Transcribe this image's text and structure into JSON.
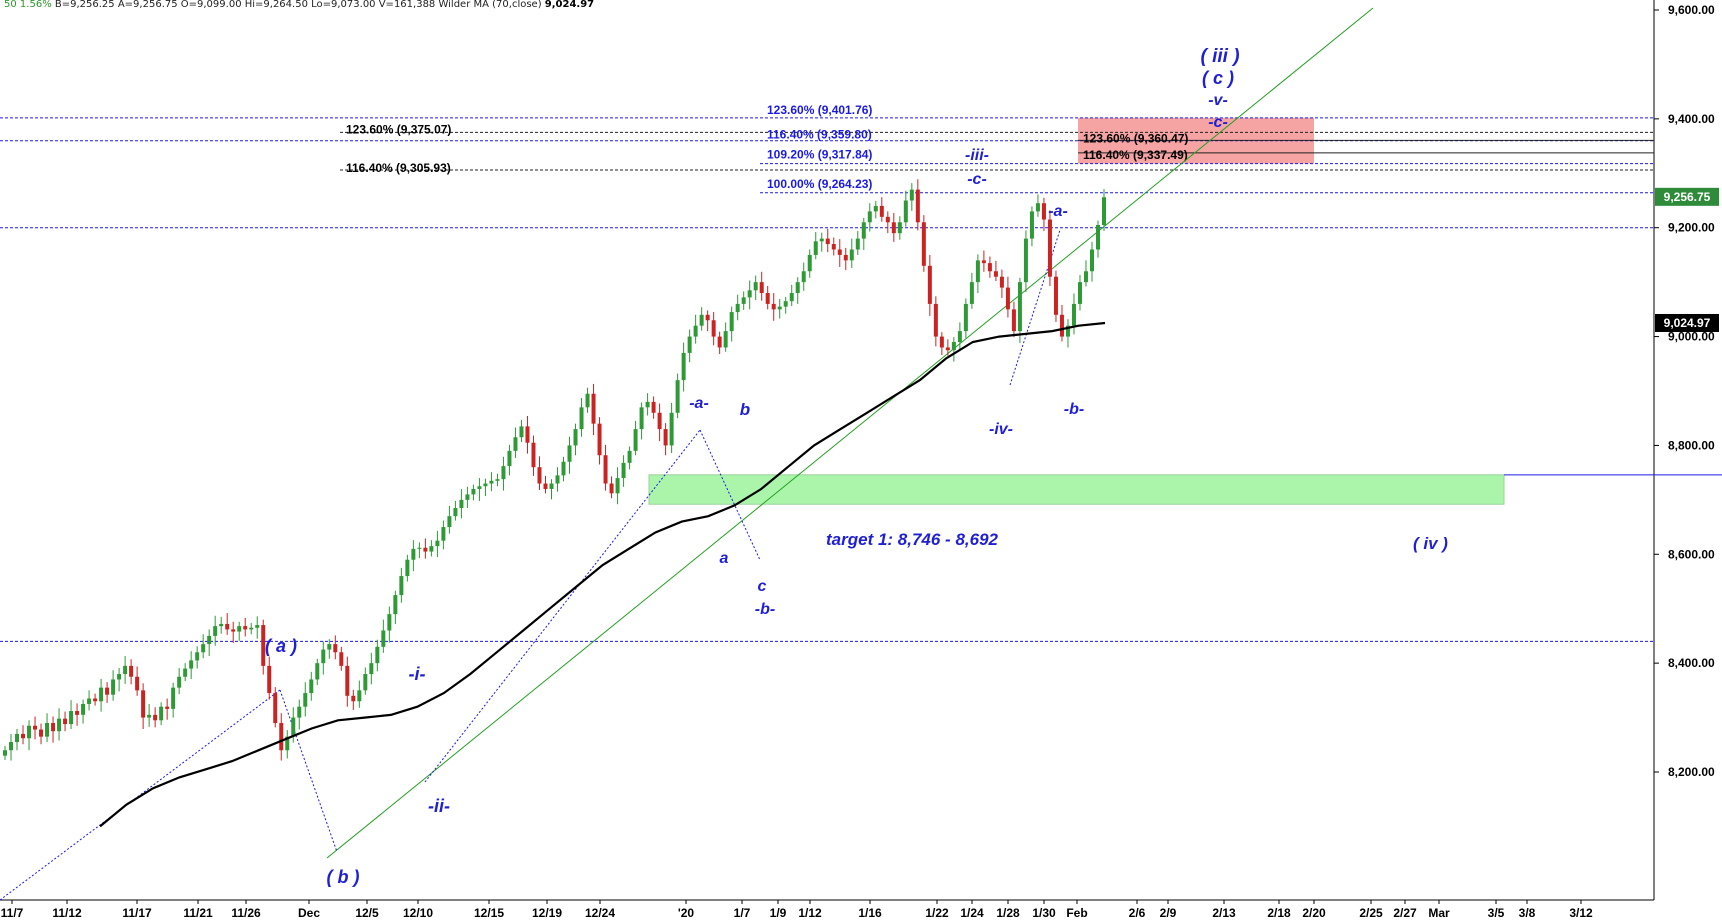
{
  "header": {
    "symbol_fragment": "50",
    "change_pct": "1.56%",
    "quote": "B=9,256.25  A=9,256.75  O=9,099.00  Hi=9,264.50  Lo=9,073.00  V=161,388",
    "indicator": "Wilder MA (70,close)",
    "indicator_value": "9,024.97"
  },
  "colors": {
    "up_candle": "#2e9a36",
    "down_candle": "#cc2222",
    "ma_line": "#000000",
    "trendline": "#22a022",
    "level_line": "#1a1ae6",
    "wave_label": "#1f1fd6",
    "target_zone": "#aaf5aa",
    "red_zone": "#f5a3a3",
    "price_badge_green": "#2e8b3a",
    "price_badge_black": "#000000"
  },
  "chart_data": {
    "type": "candlestick",
    "y_axis": {
      "ylim": [
        8080,
        9640
      ],
      "ticks": [
        "8,200.00",
        "8,400.00",
        "8,600.00",
        "8,800.00",
        "9,000.00",
        "9,200.00",
        "9,400.00",
        "9,600.00"
      ],
      "tick_values": [
        8200,
        8400,
        8600,
        8800,
        9000,
        9200,
        9400,
        9600
      ]
    },
    "x_axis": {
      "tick_labels": [
        "11/7",
        "11/12",
        "11/17",
        "11/21",
        "11/26",
        "Dec",
        "12/5",
        "12/10",
        "12/15",
        "12/19",
        "12/24",
        "'20",
        "1/7",
        "1/9",
        "1/12",
        "1/16",
        "1/22",
        "1/24",
        "1/28",
        "1/30",
        "Feb",
        "2/6",
        "2/9",
        "2/13",
        "2/18",
        "2/20",
        "2/25",
        "2/27",
        "Mar",
        "3/5",
        "3/8",
        "3/12"
      ]
    },
    "price_series": [
      8240,
      8255,
      8270,
      8262,
      8285,
      8278,
      8265,
      8290,
      8275,
      8298,
      8288,
      8312,
      8305,
      8325,
      8335,
      8330,
      8355,
      8342,
      8370,
      8380,
      8395,
      8375,
      8350,
      8300,
      8305,
      8295,
      8320,
      8316,
      8355,
      8375,
      8390,
      8405,
      8420,
      8435,
      8450,
      8468,
      8472,
      8462,
      8458,
      8468,
      8462,
      8465,
      8470,
      8395,
      8345,
      8290,
      8240,
      8265,
      8300,
      8320,
      8345,
      8370,
      8400,
      8425,
      8435,
      8420,
      8395,
      8340,
      8330,
      8350,
      8380,
      8400,
      8430,
      8460,
      8490,
      8525,
      8560,
      8590,
      8610,
      8612,
      8605,
      8615,
      8625,
      8650,
      8670,
      8685,
      8700,
      8710,
      8720,
      8725,
      8730,
      8735,
      8738,
      8762,
      8790,
      8815,
      8835,
      8805,
      8760,
      8730,
      8720,
      8730,
      8745,
      8770,
      8800,
      8830,
      8870,
      8895,
      8840,
      8782,
      8730,
      8712,
      8740,
      8768,
      8790,
      8830,
      8870,
      8880,
      8860,
      8830,
      8800,
      8860,
      8920,
      8970,
      9000,
      9020,
      9040,
      9030,
      9000,
      8980,
      9010,
      9045,
      9060,
      9072,
      9085,
      9100,
      9080,
      9060,
      9050,
      9055,
      9065,
      9080,
      9100,
      9120,
      9150,
      9175,
      9180,
      9170,
      9160,
      9150,
      9140,
      9160,
      9180,
      9210,
      9230,
      9240,
      9220,
      9210,
      9190,
      9210,
      9250,
      9270,
      9210,
      9130,
      9060,
      9000,
      8980,
      8975,
      8990,
      9010,
      9060,
      9100,
      9140,
      9135,
      9120,
      9110,
      9090,
      9050,
      9010,
      9100,
      9180,
      9230,
      9245,
      9215,
      9110,
      9040,
      9000,
      9020,
      9060,
      9100,
      9120,
      9160,
      9205,
      9256
    ],
    "ma_series": [
      8100,
      8140,
      8170,
      8190,
      8205,
      8220,
      8240,
      8260,
      8280,
      8295,
      8300,
      8305,
      8320,
      8345,
      8380,
      8420,
      8460,
      8500,
      8540,
      8580,
      8610,
      8640,
      8660,
      8670,
      8690,
      8720,
      8760,
      8800,
      8830,
      8860,
      8890,
      8920,
      8960,
      8990,
      9000,
      9005,
      9010,
      9020,
      9024.97
    ],
    "horizontal_levels": [
      {
        "price": 9401.76,
        "label": "123.60% (9,401.76)",
        "label_color": "blue"
      },
      {
        "price": 9359.8,
        "label": "116.40% (9,359.80)",
        "label_color": "blue"
      },
      {
        "price": 9317.84,
        "label": "109.20% (9,317.84)",
        "label_color": "blue"
      },
      {
        "price": 9264.23,
        "label": "100.00% (9,264.23)",
        "label_color": "blue"
      },
      {
        "price": 9375.07,
        "label": "123.60% (9,375.07)",
        "label_color": "black"
      },
      {
        "price": 9305.93,
        "label": "116.40% (9,305.93)",
        "label_color": "black"
      },
      {
        "price": 9360.47,
        "label": "123.60% (9,360.47)",
        "label_color": "black"
      },
      {
        "price": 9337.49,
        "label": "116.40% (9,337.49)",
        "label_color": "black"
      },
      {
        "price": 9200,
        "label": ""
      },
      {
        "price": 8440,
        "label": ""
      },
      {
        "price": 8746,
        "label": ""
      }
    ],
    "zones": [
      {
        "name": "target",
        "label": "target 1: 8,746 - 8,692",
        "top": 8746,
        "bottom": 8692,
        "extra_label": "( iv )"
      },
      {
        "name": "red",
        "top": 9401.76,
        "bottom": 9317.84
      }
    ],
    "wave_labels": [
      "( iii )",
      "( c )",
      "-v-",
      "-c-",
      "-iii-",
      "-c-",
      "-a-",
      "-iv-",
      "-b-",
      "-a-",
      "b",
      "a",
      "c",
      "-b-",
      "( a )",
      "( b )",
      "-i-",
      "-ii-"
    ],
    "price_badges": [
      {
        "value": "9,256.75",
        "price": 9256.75,
        "style": "green"
      },
      {
        "value": "9,024.97",
        "price": 9024.97,
        "style": "black"
      }
    ]
  }
}
